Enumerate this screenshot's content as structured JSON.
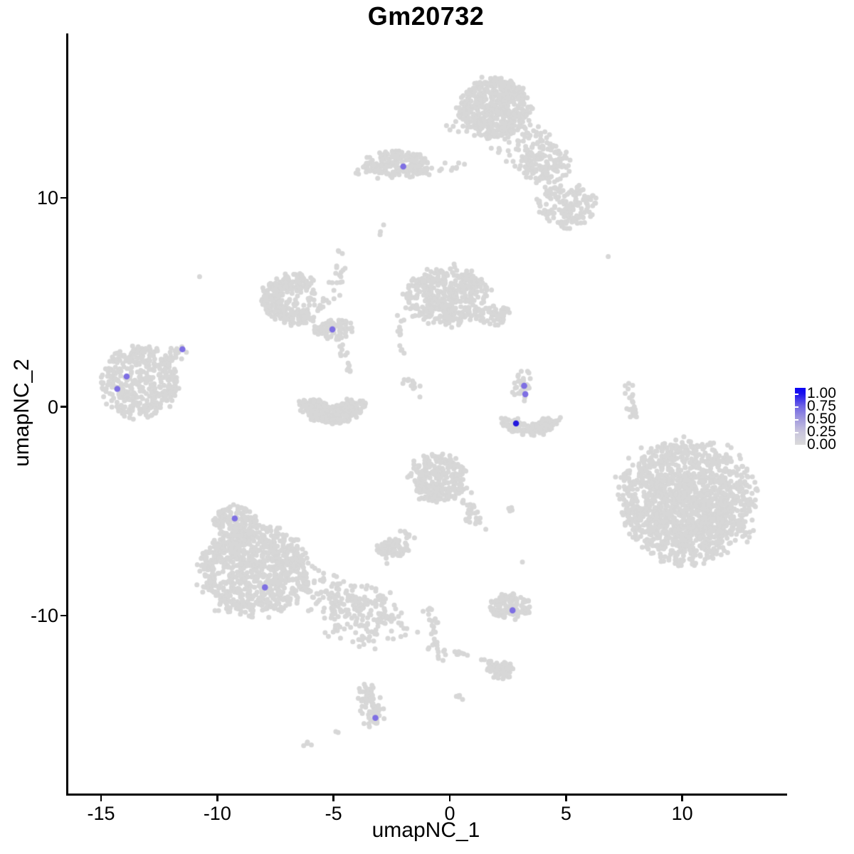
{
  "chart_data": {
    "type": "scatter",
    "title": "Gm20732",
    "xlabel": "umapNC_1",
    "ylabel": "umapNC_2",
    "x_ticks": [
      "-15",
      "-10",
      "-5",
      "0",
      "5",
      "10"
    ],
    "x_tick_values": [
      -15,
      -10,
      -5,
      0,
      5,
      10
    ],
    "y_ticks": [
      "10",
      "0",
      "-10"
    ],
    "y_tick_values": [
      10,
      0,
      -10
    ],
    "xlim": [
      -16.4,
      14.5
    ],
    "ylim": [
      -18.5,
      17.9
    ],
    "grid": false,
    "background": "#ffffff",
    "point_color_default": "#d7d7d7",
    "legend": {
      "position": "right",
      "breaks": [
        "1.00",
        "0.75",
        "0.50",
        "0.25",
        "0.00"
      ],
      "low_color": "#d3d3d3",
      "high_color": "#0000ff",
      "gradient_top_to_bottom": [
        "#0a04f4",
        "#1c12ee",
        "#7065e4",
        "#a29ade",
        "#c9c5dd",
        "#dadada"
      ]
    },
    "highlighted_points": [
      {
        "x": -2.0,
        "y": 11.5,
        "value": 0.5,
        "color": "#7e6fe3"
      },
      {
        "x": -5.05,
        "y": 3.7,
        "value": 0.5,
        "color": "#7e6fe3"
      },
      {
        "x": -11.5,
        "y": 2.75,
        "value": 0.5,
        "color": "#7e6fe3"
      },
      {
        "x": -13.9,
        "y": 1.45,
        "value": 0.5,
        "color": "#7e6fe3"
      },
      {
        "x": -14.3,
        "y": 0.85,
        "value": 0.5,
        "color": "#7e6fe3"
      },
      {
        "x": 3.2,
        "y": 1.0,
        "value": 0.5,
        "color": "#7e6fe3"
      },
      {
        "x": 3.25,
        "y": 0.6,
        "value": 0.5,
        "color": "#7e6fe3"
      },
      {
        "x": 2.85,
        "y": -0.8,
        "value": 1.0,
        "color": "#2318de"
      },
      {
        "x": -9.25,
        "y": -5.35,
        "value": 0.5,
        "color": "#7e6fe3"
      },
      {
        "x": -7.95,
        "y": -8.65,
        "value": 0.5,
        "color": "#7e6fe3"
      },
      {
        "x": 2.7,
        "y": -9.75,
        "value": 0.5,
        "color": "#7e6fe3"
      },
      {
        "x": -3.2,
        "y": -14.9,
        "value": 0.55,
        "color": "#7e6fe3"
      }
    ],
    "cluster_approximations": [
      {
        "type": "blob",
        "cx": 1.9,
        "cy": 14.3,
        "rx": 1.5,
        "ry": 1.45,
        "n": 520
      },
      {
        "type": "blob",
        "cx": 2.9,
        "cy": 12.6,
        "rx": 1.4,
        "ry": 1.2,
        "n": 90
      },
      {
        "type": "blob",
        "cx": 4.15,
        "cy": 11.6,
        "rx": 1.05,
        "ry": 0.95,
        "n": 130
      },
      {
        "type": "blob",
        "cx": 5.0,
        "cy": 9.6,
        "rx": 1.3,
        "ry": 1.05,
        "n": 150
      },
      {
        "type": "line",
        "x1": 0.5,
        "y1": 11.5,
        "x2": -1.0,
        "y2": 11.2,
        "w": 0.15,
        "n": 12
      },
      {
        "type": "blob",
        "cx": -2.3,
        "cy": 11.6,
        "rx": 1.4,
        "ry": 0.68,
        "n": 180
      },
      {
        "type": "blob",
        "cx": 0.3,
        "cy": 13.5,
        "rx": 0.5,
        "ry": 0.4,
        "n": 6
      },
      {
        "type": "blob",
        "cx": -3.8,
        "cy": 11.3,
        "rx": 0.35,
        "ry": 0.25,
        "n": 5
      },
      {
        "type": "arc",
        "cx": -6.6,
        "cy": 5.15,
        "rx": 1.5,
        "ry": 1.2,
        "a0": 55,
        "a1": 305,
        "th": 0.55,
        "n": 250
      },
      {
        "type": "blob",
        "cx": -6.5,
        "cy": 5.1,
        "rx": 1.1,
        "ry": 0.85,
        "n": 60
      },
      {
        "type": "line",
        "x1": -4.55,
        "y1": 6.95,
        "x2": -5.35,
        "y2": 4.9,
        "w": 0.15,
        "n": 20
      },
      {
        "type": "blob",
        "cx": -5.0,
        "cy": 3.7,
        "rx": 0.8,
        "ry": 0.48,
        "n": 90
      },
      {
        "type": "line",
        "x1": -4.65,
        "y1": 3.1,
        "x2": -4.4,
        "y2": 1.7,
        "w": 0.13,
        "n": 13
      },
      {
        "type": "arc",
        "cx": -5.05,
        "cy": 0.45,
        "rx": 1.55,
        "ry": 1.3,
        "a0": 190,
        "a1": 350,
        "th": 0.65,
        "n": 310
      },
      {
        "type": "blob",
        "cx": -0.1,
        "cy": 5.3,
        "rx": 1.8,
        "ry": 1.35,
        "n": 420
      },
      {
        "type": "blob",
        "cx": 1.95,
        "cy": 4.4,
        "rx": 0.7,
        "ry": 0.55,
        "n": 50
      },
      {
        "type": "line",
        "x1": -2.2,
        "y1": 4.4,
        "x2": -2.05,
        "y2": 2.4,
        "w": 0.12,
        "n": 12
      },
      {
        "type": "line",
        "x1": -2.05,
        "y1": 1.5,
        "x2": -1.25,
        "y2": 0.6,
        "w": 0.12,
        "n": 12
      },
      {
        "type": "blob",
        "cx": -13.35,
        "cy": 1.15,
        "rx": 1.65,
        "ry": 1.7,
        "n": 400
      },
      {
        "type": "line",
        "x1": -12.3,
        "y1": 2.05,
        "x2": -11.5,
        "y2": 2.75,
        "w": 0.17,
        "n": 26
      },
      {
        "type": "line",
        "x1": 3.25,
        "y1": 1.45,
        "x2": 3.05,
        "y2": 0.35,
        "w": 0.2,
        "n": 30
      },
      {
        "type": "arc",
        "cx": 3.45,
        "cy": -0.5,
        "rx": 1.3,
        "ry": 0.85,
        "a0": 185,
        "a1": 355,
        "th": 0.6,
        "n": 155
      },
      {
        "type": "line",
        "x1": 7.7,
        "y1": 1.05,
        "x2": 7.95,
        "y2": -0.55,
        "w": 0.11,
        "n": 22
      },
      {
        "type": "blob",
        "cx": 10.2,
        "cy": -4.5,
        "rx": 2.9,
        "ry": 2.85,
        "n": 1250
      },
      {
        "type": "blob",
        "cx": 10.5,
        "cy": -4.9,
        "rx": 1.9,
        "ry": 1.8,
        "n": 320
      },
      {
        "type": "blob",
        "cx": -0.5,
        "cy": -3.4,
        "rx": 1.2,
        "ry": 1.1,
        "n": 270
      },
      {
        "type": "line",
        "x1": 0.55,
        "y1": -4.55,
        "x2": 1.35,
        "y2": -5.75,
        "w": 0.18,
        "n": 30
      },
      {
        "type": "blob",
        "cx": 2.7,
        "cy": -4.9,
        "rx": 0.22,
        "ry": 0.14,
        "n": 4
      },
      {
        "type": "blob",
        "cx": -2.5,
        "cy": -6.8,
        "rx": 0.75,
        "ry": 0.5,
        "n": 80
      },
      {
        "type": "line",
        "x1": -1.95,
        "y1": -5.85,
        "x2": -1.65,
        "y2": -6.4,
        "w": 0.1,
        "n": 7
      },
      {
        "type": "blob",
        "cx": -8.4,
        "cy": -7.9,
        "rx": 2.35,
        "ry": 2.1,
        "n": 850
      },
      {
        "type": "blob",
        "cx": -9.2,
        "cy": -5.5,
        "rx": 0.95,
        "ry": 0.75,
        "n": 130
      },
      {
        "type": "line",
        "x1": -6.2,
        "y1": -8.55,
        "x2": -2.4,
        "y2": -10.35,
        "w": 0.5,
        "n": 230
      },
      {
        "type": "blob",
        "cx": -4.2,
        "cy": -10.9,
        "rx": 1.3,
        "ry": 0.6,
        "n": 30
      },
      {
        "type": "blob",
        "cx": 2.55,
        "cy": -9.55,
        "rx": 0.9,
        "ry": 0.58,
        "n": 115
      },
      {
        "type": "line",
        "x1": -0.95,
        "y1": -9.6,
        "x2": -0.3,
        "y2": -12.1,
        "w": 0.14,
        "n": 30
      },
      {
        "type": "blob",
        "cx": -0.85,
        "cy": -11.6,
        "rx": 0.1,
        "ry": 0.1,
        "n": 2
      },
      {
        "type": "line",
        "x1": 0.2,
        "y1": -11.7,
        "x2": 0.8,
        "y2": -11.95,
        "w": 0.08,
        "n": 7
      },
      {
        "type": "blob",
        "cx": 1.5,
        "cy": -12.2,
        "rx": 0.3,
        "ry": 0.14,
        "n": 6
      },
      {
        "type": "blob",
        "cx": 2.2,
        "cy": -12.6,
        "rx": 0.55,
        "ry": 0.42,
        "n": 60
      },
      {
        "type": "blob",
        "cx": 0.45,
        "cy": -13.9,
        "rx": 0.18,
        "ry": 0.14,
        "n": 5
      },
      {
        "type": "line",
        "x1": -3.62,
        "y1": -13.3,
        "x2": -3.25,
        "y2": -15.1,
        "w": 0.2,
        "n": 75
      },
      {
        "type": "blob",
        "cx": -4.85,
        "cy": -15.6,
        "rx": 0.08,
        "ry": 0.08,
        "n": 2
      },
      {
        "type": "line",
        "x1": -6.15,
        "y1": -16.1,
        "x2": -5.85,
        "y2": -16.3,
        "w": 0.08,
        "n": 4
      },
      {
        "type": "blob",
        "cx": -10.7,
        "cy": 6.2,
        "rx": 0.07,
        "ry": 0.07,
        "n": 1
      },
      {
        "type": "blob",
        "cx": 6.75,
        "cy": 7.2,
        "rx": 0.07,
        "ry": 0.07,
        "n": 1
      },
      {
        "type": "blob",
        "cx": -2.9,
        "cy": 8.7,
        "rx": 0.07,
        "ry": 0.07,
        "n": 1
      },
      {
        "type": "blob",
        "cx": -4.75,
        "cy": 7.4,
        "rx": 0.16,
        "ry": 0.12,
        "n": 3
      },
      {
        "type": "blob",
        "cx": -2.9,
        "cy": 8.3,
        "rx": 0.12,
        "ry": 0.12,
        "n": 2
      },
      {
        "type": "blob",
        "cx": -2.7,
        "cy": -7.5,
        "rx": 0.07,
        "ry": 0.07,
        "n": 1
      },
      {
        "type": "blob",
        "cx": 3.2,
        "cy": -7.45,
        "rx": 0.07,
        "ry": 0.07,
        "n": 1
      }
    ]
  }
}
